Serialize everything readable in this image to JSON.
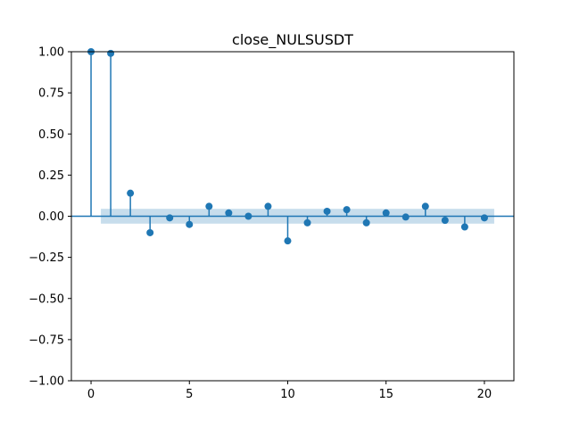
{
  "chart_data": {
    "type": "stem",
    "title": "close_NULSUSDT",
    "xlabel": "",
    "ylabel": "",
    "xlim": [
      -1,
      21.5
    ],
    "ylim": [
      -1.0,
      1.0
    ],
    "x_ticks": [
      0,
      5,
      10,
      15,
      20
    ],
    "x_tick_labels": [
      "0",
      "5",
      "10",
      "15",
      "20"
    ],
    "y_ticks": [
      1.0,
      0.75,
      0.5,
      0.25,
      0.0,
      -0.25,
      -0.5,
      -0.75,
      -1.0
    ],
    "y_tick_labels": [
      "1.00",
      "0.75",
      "0.50",
      "0.25",
      "0.00",
      "−0.25",
      "−0.50",
      "−0.75",
      "−1.00"
    ],
    "lags": [
      0,
      1,
      2,
      3,
      4,
      5,
      6,
      7,
      8,
      9,
      10,
      11,
      12,
      13,
      14,
      15,
      16,
      17,
      18,
      19,
      20
    ],
    "values": [
      1.0,
      0.99,
      0.14,
      -0.1,
      -0.01,
      -0.05,
      0.06,
      0.02,
      0.0,
      0.06,
      -0.15,
      -0.04,
      0.03,
      0.04,
      -0.04,
      0.02,
      -0.005,
      0.06,
      -0.025,
      -0.065,
      -0.01
    ],
    "confidence_band": {
      "x_start": 0.5,
      "x_end": 20.5,
      "lower": -0.045,
      "upper": 0.045
    },
    "grid": false,
    "colors": {
      "stem": "#1f77b4",
      "band": "#1f77b4"
    }
  }
}
